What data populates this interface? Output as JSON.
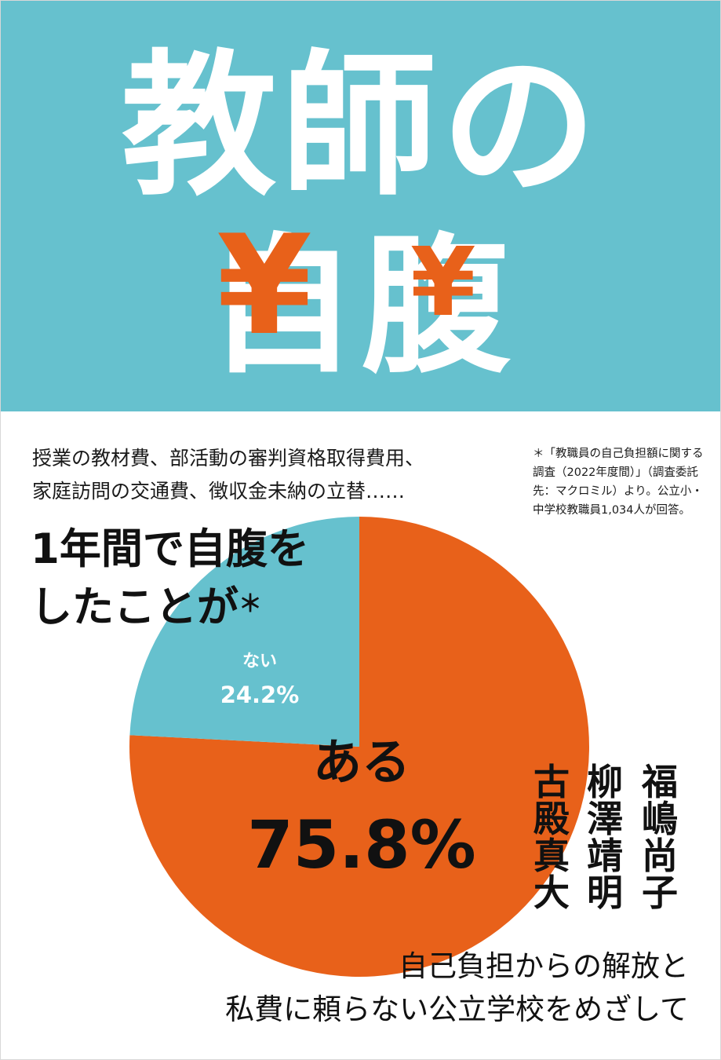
{
  "title": {
    "line1": "教師の",
    "line2": "自腹",
    "yen_symbol": "¥"
  },
  "description": {
    "line1": "授業の教材費、部活動の審判資格取得費用、",
    "line2": "家庭訪問の交通費、徴収金未納の立替……"
  },
  "note": {
    "text": "＊「教職員の自己負担額に関する調査（2022年度間）」（調査委託先：マクロミル）より。公立小・中学校教職員1,034人が回答。"
  },
  "question": {
    "line1": "1年間で自腹を",
    "line2": "したことが",
    "marker": "＊"
  },
  "chart_data": {
    "type": "pie",
    "slices": [
      {
        "label": "ある",
        "value": 75.8,
        "display": "75.8%",
        "color": "#e8611a"
      },
      {
        "label": "ない",
        "value": 24.2,
        "display": "24.2%",
        "color": "#66c1ce"
      }
    ]
  },
  "authors": [
    "福嶋尚子",
    "柳澤靖明",
    "古殿真大"
  ],
  "tagline": {
    "line1": "自己負担からの解放と",
    "line2": "私費に頼らない公立学校をめざして"
  },
  "colors": {
    "band": "#66c1ce",
    "accent": "#e8611a",
    "text": "#111111"
  }
}
